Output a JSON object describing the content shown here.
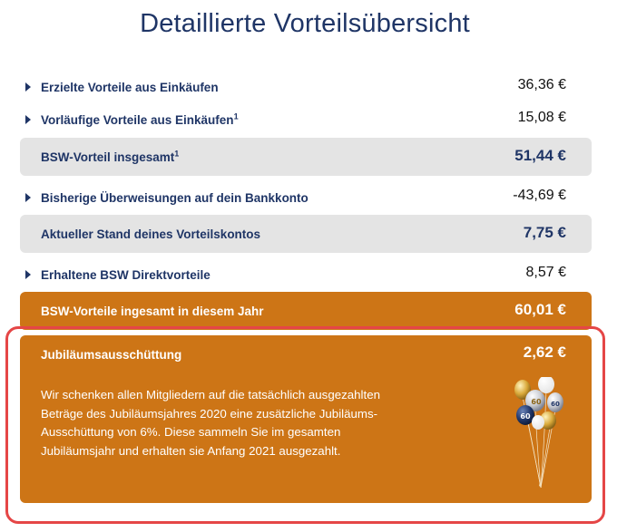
{
  "title": "Detaillierte Vorteilsübersicht",
  "rows": [
    {
      "label": "Erzielte Vorteile aus Einkäufen",
      "sup": "",
      "value": "36,36 €"
    },
    {
      "label": "Vorläufige Vorteile aus Einkäufen",
      "sup": "1",
      "value": "15,08 €"
    },
    {
      "label": "BSW-Vorteil insgesamt",
      "sup": "1",
      "value": "51,44 €"
    },
    {
      "label": "Bisherige Überweisungen auf dein Bankkonto",
      "sup": "",
      "value": "-43,69 €"
    },
    {
      "label": "Aktueller Stand deines Vorteilskontos",
      "sup": "",
      "value": "7,75 €"
    },
    {
      "label": "Erhaltene BSW Direktvorteile",
      "sup": "",
      "value": "8,57 €"
    },
    {
      "label": "BSW-Vorteile ingesamt in diesem Jahr",
      "sup": "",
      "value": "60,01 €"
    }
  ],
  "jubilaeum": {
    "label": "Jubiläumsausschüttung",
    "value": "2,62 €",
    "text_lines": [
      "Wir schenken allen Mitgliedern auf die tatsächlich ausgezahlten",
      "Beträge des Jubiläumsjahres 2020 eine zusätzliche Jubiläums-",
      "Ausschüttung von 6%. Diese sammeln Sie im gesamten",
      "Jubiläumsjahr und erhalten sie Anfang 2021 ausgezahlt."
    ],
    "balloon_label": "60"
  },
  "colors": {
    "navy": "#1f3566",
    "orange": "#cd7516",
    "gray_row": "#e4e4e4",
    "highlight_border": "#e54646"
  }
}
